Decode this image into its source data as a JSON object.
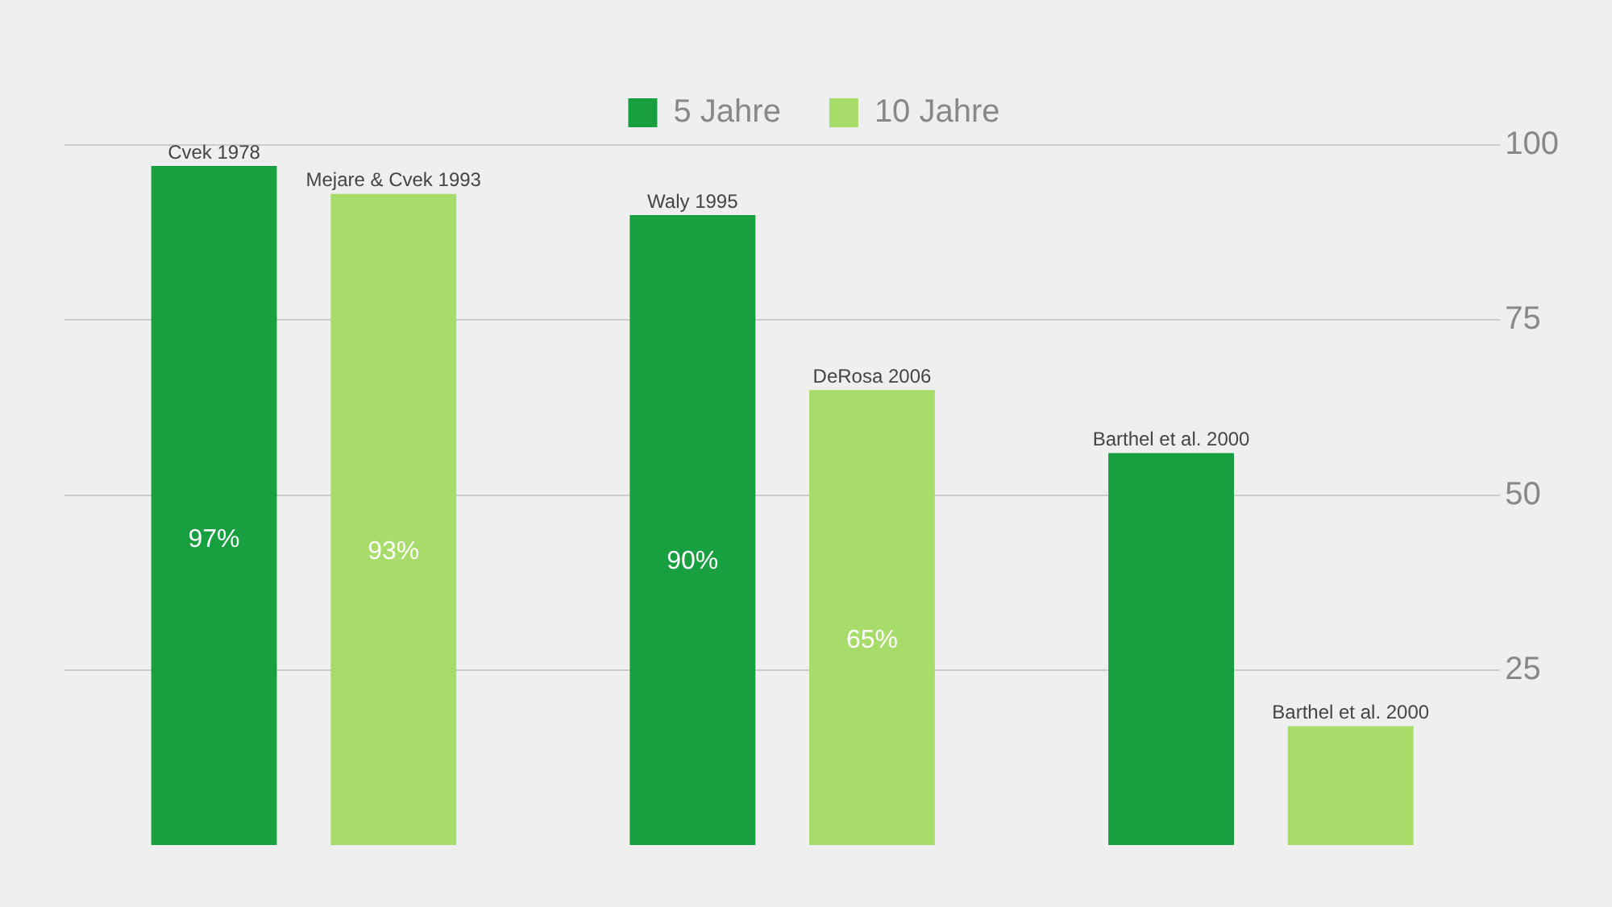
{
  "chart_data": {
    "type": "bar",
    "categories": [
      null,
      null,
      null
    ],
    "series": [
      {
        "name": "5 Jahre",
        "color": "#18a040",
        "values": [
          97,
          90,
          56
        ],
        "value_labels": [
          "97%",
          "90%",
          null
        ]
      },
      {
        "name": "10 Jahre",
        "color": "#a8dc6a",
        "values": [
          93,
          65,
          17
        ],
        "value_labels": [
          "93%",
          "65%",
          null
        ]
      }
    ],
    "ylim": [
      0,
      100
    ],
    "yticks": [
      25,
      50,
      75,
      100
    ],
    "grid": "y",
    "legend": "top",
    "annotations": [
      {
        "text": "Cvek 1978",
        "y": 97
      },
      {
        "text": "Mejare & Cvek 1993",
        "y": 93
      },
      {
        "text": "Waly 1995",
        "y": 90
      },
      {
        "text": "DeRosa 2006",
        "y": 65
      },
      {
        "text": "Barthel et al. 2000",
        "y": 56
      },
      {
        "text": "Barthel et al. 2000",
        "y": 17
      }
    ]
  }
}
